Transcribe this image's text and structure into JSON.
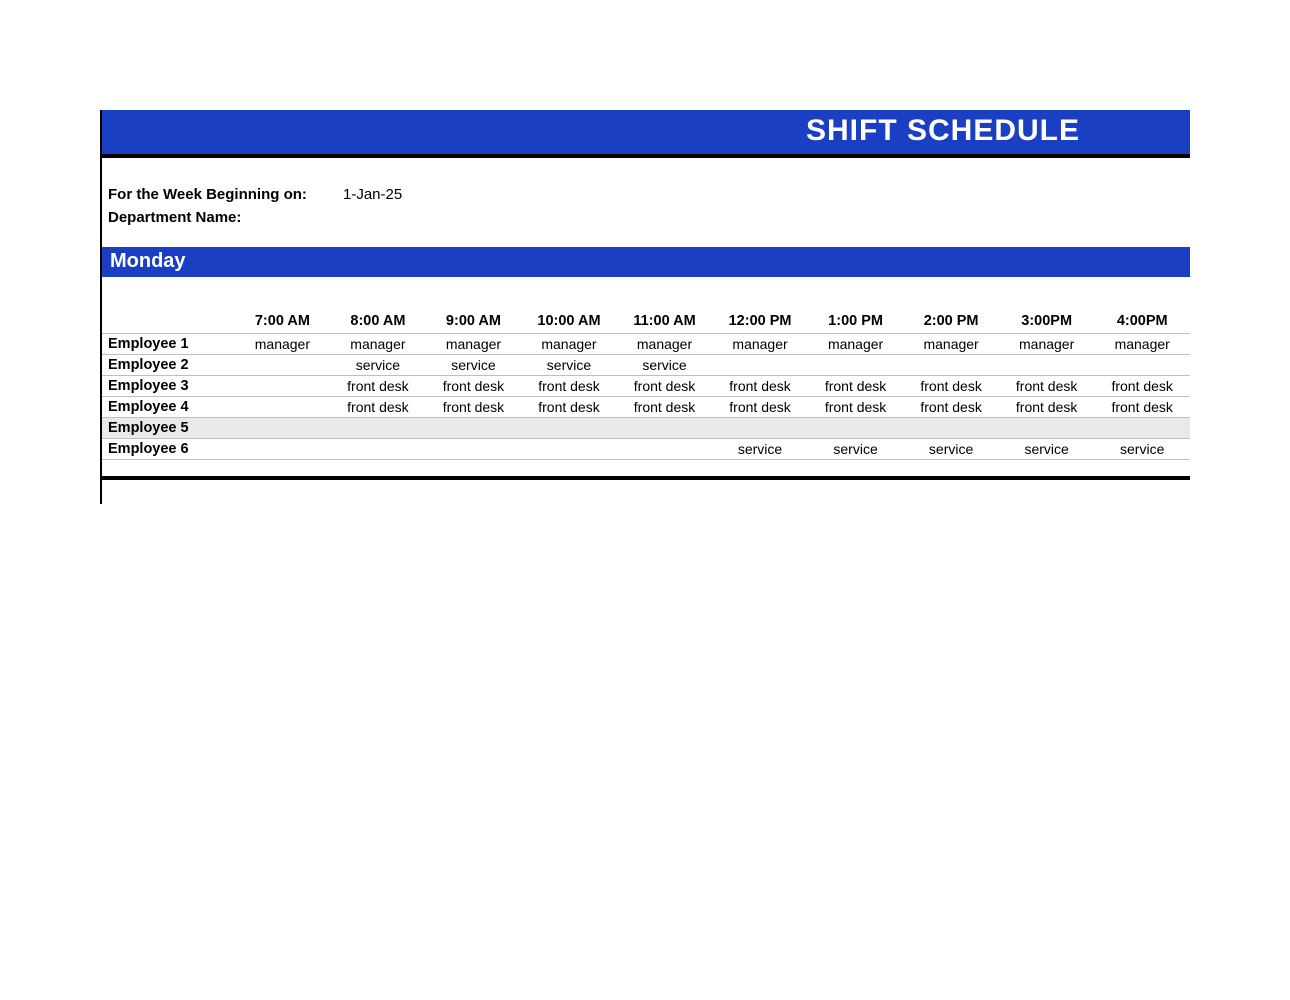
{
  "colors": {
    "banner_bg": "#1a3fc2",
    "banner_text": "#ffffff",
    "grid_line": "#bfbfbf",
    "shaded_row": "#e9e9e9",
    "rule": "#000000",
    "page_bg": "#ffffff"
  },
  "title": "SHIFT SCHEDULE",
  "meta": {
    "week_label": "For the Week Beginning on:",
    "week_value": "1-Jan-25",
    "dept_label": "Department Name:",
    "dept_value": ""
  },
  "day": "Monday",
  "time_headers": [
    "7:00 AM",
    "8:00 AM",
    "9:00 AM",
    "10:00 AM",
    "11:00 AM",
    "12:00 PM",
    "1:00 PM",
    "2:00 PM",
    "3:00PM",
    "4:00PM"
  ],
  "employees": [
    {
      "name": "Employee 1",
      "shaded": false,
      "cells": [
        "manager",
        "manager",
        "manager",
        "manager",
        "manager",
        "manager",
        "manager",
        "manager",
        "manager",
        "manager"
      ]
    },
    {
      "name": "Employee 2",
      "shaded": false,
      "cells": [
        "",
        "service",
        "service",
        "service",
        "service",
        "",
        "",
        "",
        "",
        ""
      ]
    },
    {
      "name": "Employee 3",
      "shaded": false,
      "cells": [
        "",
        "front desk",
        "front desk",
        "front desk",
        "front desk",
        "front desk",
        "front desk",
        "front desk",
        "front desk",
        "front desk"
      ]
    },
    {
      "name": "Employee 4",
      "shaded": false,
      "cells": [
        "",
        "front desk",
        "front desk",
        "front desk",
        "front desk",
        "front desk",
        "front desk",
        "front desk",
        "front desk",
        "front desk"
      ]
    },
    {
      "name": "Employee 5",
      "shaded": true,
      "cells": [
        "",
        "",
        "",
        "",
        "",
        "",
        "",
        "",
        "",
        ""
      ]
    },
    {
      "name": "Employee 6",
      "shaded": false,
      "cells": [
        "",
        "",
        "",
        "",
        "",
        "service",
        "service",
        "service",
        "service",
        "service"
      ]
    }
  ]
}
